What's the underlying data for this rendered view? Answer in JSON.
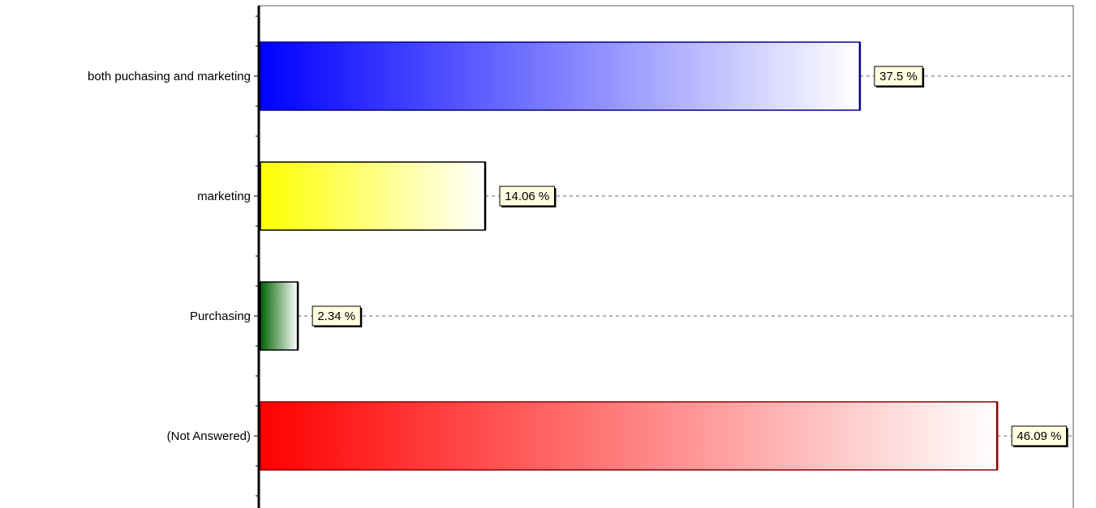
{
  "chart_data": {
    "type": "bar",
    "orientation": "horizontal",
    "title": "",
    "xlabel": "",
    "ylabel": "",
    "categories": [
      "both puchasing and marketing",
      "marketing",
      "Purchasing",
      "(Not Answered)"
    ],
    "values": [
      37.5,
      14.06,
      2.34,
      46.09
    ],
    "data_labels": [
      "37.5 %",
      "14.06 %",
      "2.34 %",
      "46.09 %"
    ],
    "colors": [
      "#0000ff",
      "#ffff00",
      "#006400",
      "#ff0000"
    ],
    "edge_colors": [
      "#00008b",
      "#000000",
      "#000000",
      "#8b0000"
    ],
    "xlim": [
      0,
      50.8
    ],
    "grid": "dashed leader lines from value labels",
    "legend": "none"
  }
}
